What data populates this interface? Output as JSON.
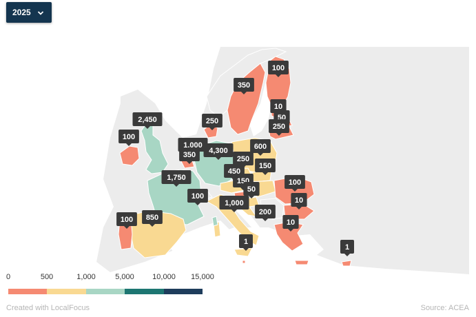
{
  "selector": {
    "value": "2025",
    "icon": "chevron-down-icon"
  },
  "legend": {
    "labels": [
      "0",
      "500",
      "1,000",
      "5,000",
      "10,000",
      "15,000"
    ],
    "colors": [
      "#f58a72",
      "#f9d992",
      "#a8d6c4",
      "#1d7672",
      "#1e3d5c"
    ]
  },
  "colors": {
    "none": "#ececec",
    "sea": "#ffffff",
    "marker": "#3a3a3a"
  },
  "chart_data": {
    "type": "choropleth",
    "year": "2025",
    "markers": [
      {
        "country": "Finland",
        "value": "100"
      },
      {
        "country": "Sweden",
        "value": "350"
      },
      {
        "country": "Estonia",
        "value": "10"
      },
      {
        "country": "Latvia",
        "value": "50"
      },
      {
        "country": "Lithuania",
        "value": "250"
      },
      {
        "country": "Denmark",
        "value": "250"
      },
      {
        "country": "United Kingdom",
        "value": "2,450"
      },
      {
        "country": "Ireland",
        "value": "100"
      },
      {
        "country": "Netherlands",
        "value": "1,000"
      },
      {
        "country": "Belgium",
        "value": "350"
      },
      {
        "country": "Germany",
        "value": "4,300"
      },
      {
        "country": "Poland",
        "value": "600"
      },
      {
        "country": "Czechia",
        "value": "250"
      },
      {
        "country": "Slovakia",
        "value": "150"
      },
      {
        "country": "Austria",
        "value": "450"
      },
      {
        "country": "Hungary",
        "value": "150"
      },
      {
        "country": "Slovenia",
        "value": "50"
      },
      {
        "country": "France",
        "value": "1,750"
      },
      {
        "country": "Switzerland",
        "value": "100"
      },
      {
        "country": "Italy",
        "value": "1,000"
      },
      {
        "country": "Romania",
        "value": "100"
      },
      {
        "country": "Bulgaria",
        "value": "10"
      },
      {
        "country": "Croatia",
        "value": "200"
      },
      {
        "country": "Greece",
        "value": "10"
      },
      {
        "country": "Spain",
        "value": "850"
      },
      {
        "country": "Portugal",
        "value": "100"
      },
      {
        "country": "Malta",
        "value": "1"
      },
      {
        "country": "Cyprus",
        "value": "1"
      }
    ]
  },
  "footer": {
    "credit": "Created with LocalFocus",
    "source": "Source: ACEA"
  }
}
